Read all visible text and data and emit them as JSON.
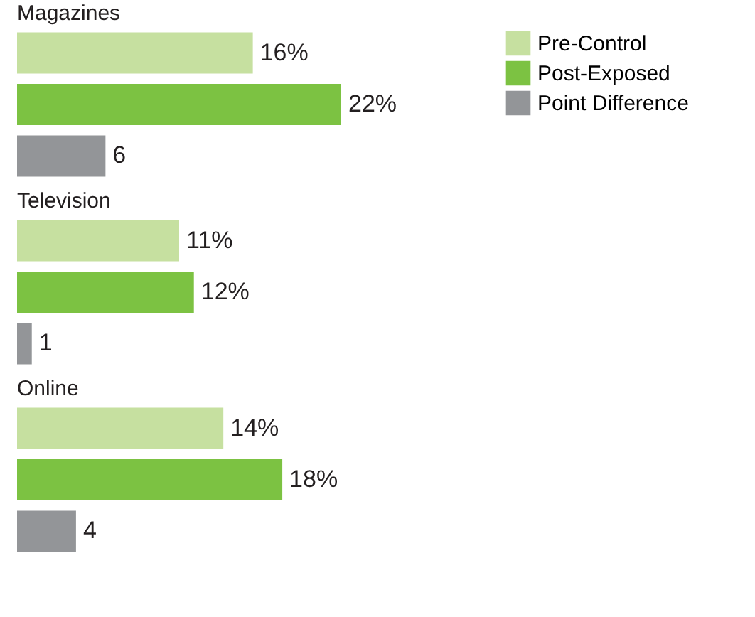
{
  "chart_data": {
    "type": "bar",
    "orientation": "horizontal",
    "categories": [
      "Magazines",
      "Television",
      "Online"
    ],
    "legend": "top right",
    "series": [
      {
        "name": "Pre-Control",
        "color": "#c6e0a0",
        "values": [
          16,
          11,
          14
        ],
        "value_labels": [
          "16%",
          "11%",
          "14%"
        ]
      },
      {
        "name": "Post-Exposed",
        "color": "#7cc242",
        "values": [
          22,
          12,
          18
        ],
        "value_labels": [
          "22%",
          "12%",
          "18%"
        ]
      },
      {
        "name": "Point Difference",
        "color": "#939598",
        "values": [
          6,
          1,
          4
        ],
        "value_labels": [
          "6",
          "1",
          "4"
        ]
      }
    ]
  }
}
